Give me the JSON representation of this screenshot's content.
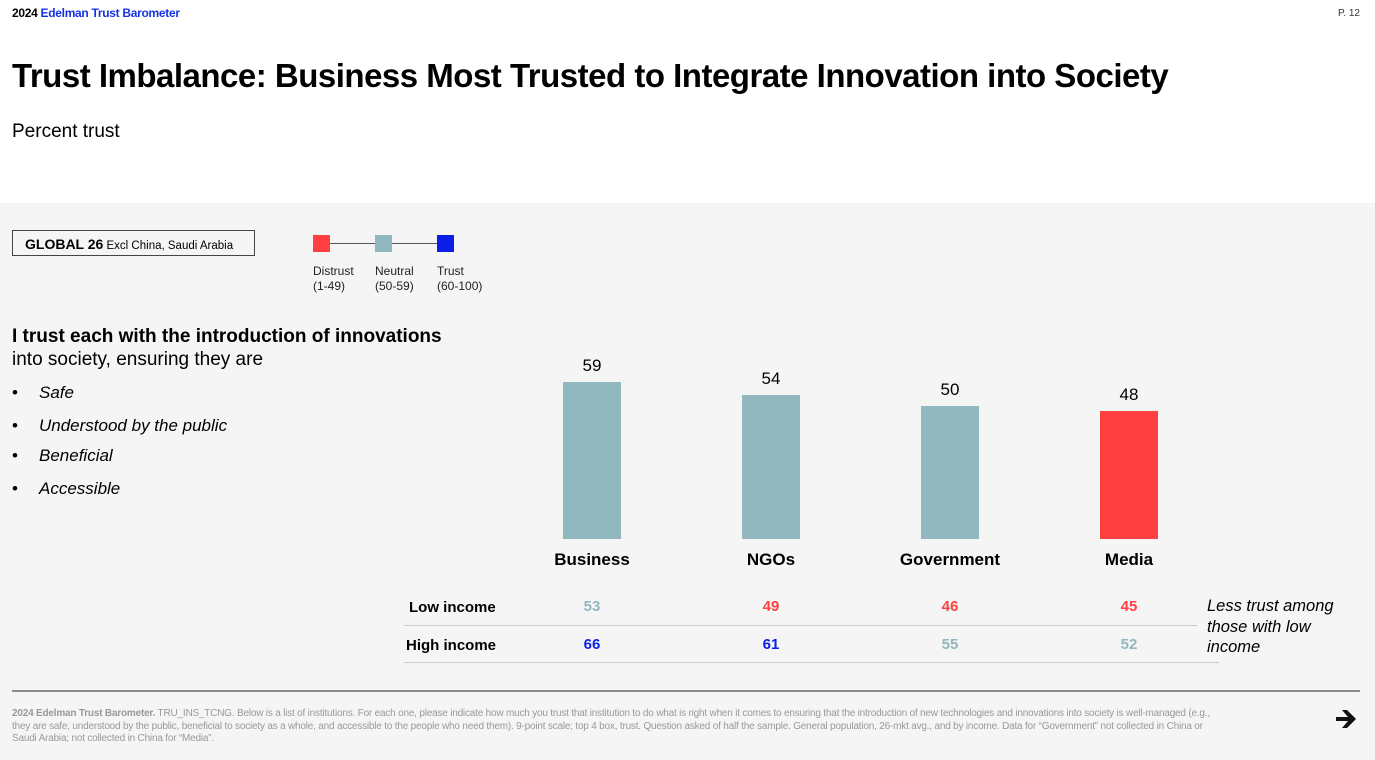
{
  "header": {
    "brand_year": "2024",
    "brand_name": "Edelman Trust Barometer",
    "page": "P. 12"
  },
  "title": "Trust Imbalance: Business Most Trusted to Integrate Innovation into Society",
  "subtitle": "Percent trust",
  "region": {
    "bold": "GLOBAL 26",
    "rest": "Excl China, Saudi Arabia"
  },
  "legend": [
    {
      "label": "Distrust",
      "range": "(1-49)",
      "color": "#fe4040"
    },
    {
      "label": "Neutral",
      "range": "(50-59)",
      "color": "#92b8bf"
    },
    {
      "label": "Trust",
      "range": "(60-100)",
      "color": "#0a1ee8"
    }
  ],
  "question": {
    "bold": "I trust each with the introduction of innovations",
    "rest": "into society, ensuring they are",
    "bullets": [
      "Safe",
      "Understood by the public",
      "Beneficial",
      "Accessible"
    ]
  },
  "chart_data": {
    "type": "bar",
    "categories": [
      "Business",
      "NGOs",
      "Government",
      "Media"
    ],
    "values": [
      59,
      54,
      50,
      48
    ],
    "bar_colors": [
      "#92b8bf",
      "#92b8bf",
      "#92b8bf",
      "#fe4040"
    ],
    "ylim": [
      0,
      100
    ],
    "grid": false,
    "table": {
      "rows": [
        {
          "label": "Low income",
          "values": [
            53,
            49,
            46,
            45
          ]
        },
        {
          "label": "High income",
          "values": [
            66,
            61,
            55,
            52
          ]
        }
      ]
    }
  },
  "note": "Less trust among those with low income",
  "footer": {
    "bold": "2024 Edelman Trust Barometer.",
    "text": " TRU_INS_TCNG. Below is a list of institutions. For each one, please indicate how much you trust that institution to do what is right when it comes to ensuring that the introduction of new technologies and innovations into society is well-managed (e.g., they are safe, understood by the public, beneficial to society as a whole, and accessible to the people who need them). 9-point scale; top 4 box, trust. Question asked of half the sample. General population, 26-mkt avg., and by income. Data for “Government” not collected in China or Saudi Arabia; not collected in China for “Media”."
  },
  "icons": {
    "next": "arrow-right-icon"
  }
}
